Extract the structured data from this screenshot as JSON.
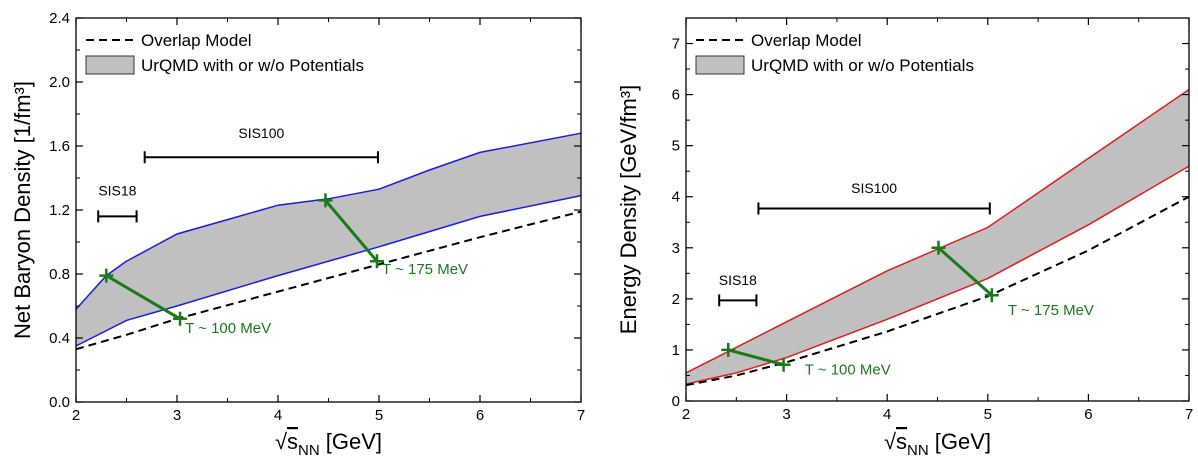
{
  "chart_data": [
    {
      "type": "line",
      "xlabel": {
        "root": "√",
        "base": "s",
        "sub": "NN",
        "unit": " [GeV]"
      },
      "ylabel": "Net Baryon Density [1/fm³]",
      "xlim": [
        2,
        7
      ],
      "ylim": [
        0,
        2.4
      ],
      "x_ticks": [
        "2",
        "3",
        "4",
        "5",
        "6",
        "7"
      ],
      "y_ticks": [
        "0.0",
        "0.4",
        "0.8",
        "1.2",
        "1.6",
        "2.0",
        "2.4"
      ],
      "legend_position": "top-left",
      "legend": [
        "Overlap Model",
        "UrQMD with or w/o Potentials"
      ],
      "band_color": "#c0c0c0",
      "edge_color": "#1c1ce0",
      "band_upper": {
        "x": [
          2,
          2.3,
          2.5,
          3,
          3.5,
          4,
          4.5,
          5,
          5.5,
          6,
          7
        ],
        "y": [
          0.58,
          0.79,
          0.88,
          1.05,
          1.14,
          1.23,
          1.27,
          1.33,
          1.45,
          1.56,
          1.68
        ]
      },
      "band_lower": {
        "x": [
          2,
          2.5,
          3,
          4,
          5,
          6,
          7
        ],
        "y": [
          0.35,
          0.51,
          0.6,
          0.79,
          0.97,
          1.16,
          1.29
        ]
      },
      "overlap_model": {
        "x": [
          2,
          2.5,
          3,
          4,
          5,
          6,
          7
        ],
        "y": [
          0.33,
          0.42,
          0.52,
          0.69,
          0.86,
          1.03,
          1.19
        ]
      },
      "markers": {
        "color": "#1a7a1a",
        "segments": [
          {
            "x": [
              2.3,
              3.03
            ],
            "y": [
              0.79,
              0.52
            ]
          },
          {
            "x": [
              4.47,
              4.98
            ],
            "y": [
              1.26,
              0.88
            ]
          }
        ]
      },
      "annotations": [
        {
          "text": "T ~ 100 MeV",
          "x": 3.08,
          "y": 0.43
        },
        {
          "text": "T ~ 175 MeV",
          "x": 5.03,
          "y": 0.8
        }
      ],
      "ranges": [
        {
          "label": "SIS18",
          "x": [
            2.22,
            2.6
          ],
          "y": 1.16,
          "label_y": 1.29
        },
        {
          "label": "SIS100",
          "x": [
            2.68,
            4.99
          ],
          "y": 1.53,
          "label_y": 1.65
        }
      ]
    },
    {
      "type": "line",
      "xlabel": {
        "root": "√",
        "base": "s",
        "sub": "NN",
        "unit": " [GeV]"
      },
      "ylabel": "Energy Density [GeV/fm³]",
      "xlim": [
        2,
        7
      ],
      "ylim": [
        0,
        7.5
      ],
      "x_ticks": [
        "2",
        "3",
        "4",
        "5",
        "6",
        "7"
      ],
      "y_ticks": [
        "0",
        "1",
        "2",
        "3",
        "4",
        "5",
        "6",
        "7"
      ],
      "legend_position": "top-left",
      "legend": [
        "Overlap Model",
        "UrQMD with or w/o Potentials"
      ],
      "band_color": "#c0c0c0",
      "edge_color": "#e01c1c",
      "band_upper": {
        "x": [
          2,
          2.5,
          3,
          4,
          5,
          6,
          7
        ],
        "y": [
          0.55,
          1.05,
          1.55,
          2.55,
          3.4,
          4.75,
          6.1
        ]
      },
      "band_lower": {
        "x": [
          2,
          2.5,
          3,
          4,
          5,
          6,
          7
        ],
        "y": [
          0.33,
          0.55,
          0.85,
          1.6,
          2.4,
          3.45,
          4.6
        ]
      },
      "overlap_model": {
        "x": [
          2,
          2.5,
          3,
          4,
          5,
          6,
          7
        ],
        "y": [
          0.31,
          0.5,
          0.76,
          1.36,
          2.05,
          2.95,
          4.0
        ]
      },
      "markers": {
        "color": "#1a7a1a",
        "segments": [
          {
            "x": [
              2.42,
              2.97
            ],
            "y": [
              1.0,
              0.71
            ]
          },
          {
            "x": [
              4.51,
              5.04
            ],
            "y": [
              3.0,
              2.07
            ]
          }
        ]
      },
      "annotations": [
        {
          "text": "T ~ 100 MeV",
          "x": 3.18,
          "y": 0.52
        },
        {
          "text": "T ~ 175 MeV",
          "x": 5.2,
          "y": 1.68
        }
      ],
      "ranges": [
        {
          "label": "SIS18",
          "x": [
            2.33,
            2.7
          ],
          "y": 1.97,
          "label_y": 2.27
        },
        {
          "label": "SIS100",
          "x": [
            2.72,
            5.02
          ],
          "y": 3.77,
          "label_y": 4.07
        }
      ]
    }
  ]
}
